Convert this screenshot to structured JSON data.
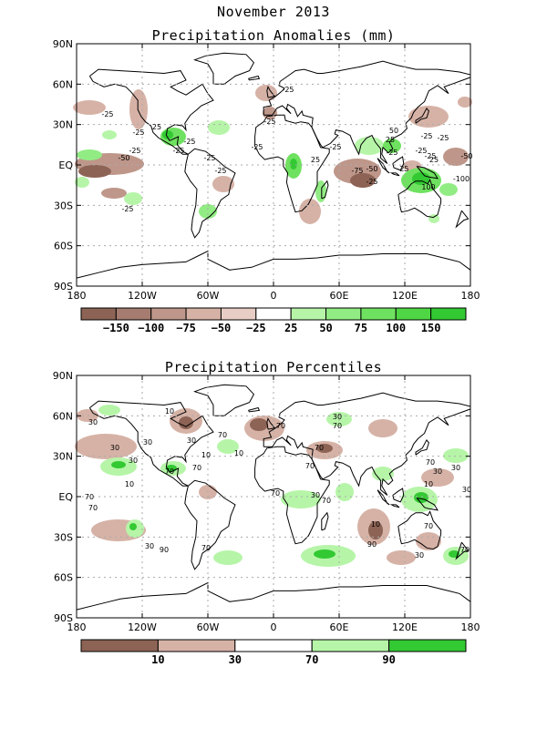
{
  "main_title": "November 2013",
  "panels": [
    {
      "id": "anomalies",
      "title": "Precipitation Anomalies (mm)",
      "lat_labels": [
        "90N",
        "60N",
        "30N",
        "EQ",
        "30S",
        "60S",
        "90S"
      ],
      "lon_labels": [
        "180",
        "120W",
        "60W",
        "0",
        "60E",
        "120E",
        "180"
      ],
      "colorbar": {
        "colors": [
          "#8c6355",
          "#a57c6f",
          "#be978a",
          "#d6b2a6",
          "#e7cdc4",
          "#ffffff",
          "#b6f5a8",
          "#92ec84",
          "#6fe160",
          "#4fd645",
          "#33c933"
        ],
        "labels": [
          "-150",
          "-100",
          "-75",
          "-50",
          "-25",
          "25",
          "50",
          "75",
          "100",
          "150"
        ]
      },
      "contour_labels": [
        "-25",
        "-25",
        "-25",
        "-25",
        "-50",
        "-25",
        "25",
        "-25",
        "-25",
        "-25",
        "-25",
        "-25",
        "25",
        "-25",
        "-25",
        "-25",
        "-25",
        "25",
        "-25",
        "-50",
        "-75",
        "-25",
        "50",
        "25",
        "-25",
        "-50",
        "-25",
        "100",
        "-100",
        "-25"
      ]
    },
    {
      "id": "percentiles",
      "title": "Precipitation Percentiles",
      "lat_labels": [
        "90N",
        "60N",
        "30N",
        "EQ",
        "30S",
        "60S",
        "90S"
      ],
      "lon_labels": [
        "180",
        "120W",
        "60W",
        "0",
        "60E",
        "120E",
        "180"
      ],
      "colorbar": {
        "colors": [
          "#8c6355",
          "#d6b2a6",
          "#ffffff",
          "#b6f5a8",
          "#33c933"
        ],
        "labels": [
          "10",
          "30",
          "70",
          "90"
        ]
      },
      "contour_labels": [
        "30",
        "30",
        "10",
        "30",
        "70",
        "10",
        "70",
        "30",
        "70",
        "70",
        "10",
        "30",
        "10",
        "70",
        "30",
        "70",
        "70",
        "70",
        "70",
        "30",
        "70",
        "10",
        "70",
        "90",
        "30",
        "90",
        "70",
        "30",
        "70",
        "30",
        "70",
        "30",
        "70",
        "30",
        "10"
      ]
    }
  ],
  "colors": {
    "dry_strong": "#8c6355",
    "dry": "#d6b2a6",
    "wet": "#b6f5a8",
    "wet_strong": "#33c933",
    "grid": "#aaaaaa"
  }
}
